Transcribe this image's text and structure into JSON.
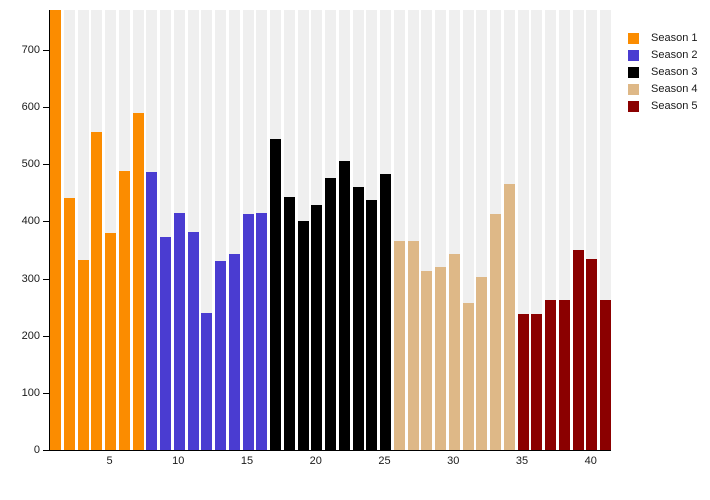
{
  "chart_data": {
    "type": "bar",
    "title": "",
    "xlabel": "",
    "ylabel": "",
    "ylim": [
      0,
      770
    ],
    "yticks": [
      0,
      100,
      200,
      300,
      400,
      500,
      600,
      700
    ],
    "xticks": [
      5,
      10,
      15,
      20,
      25,
      30,
      35,
      40
    ],
    "x_range": [
      1,
      41
    ],
    "grid": false,
    "background_stripe_color": "#efefef",
    "legend_position": "top-right",
    "series": [
      {
        "name": "Season 1",
        "color": "#FB8C00",
        "start_episode": 1,
        "values": [
          770,
          441,
          333,
          557,
          379,
          489,
          590
        ]
      },
      {
        "name": "Season 2",
        "color": "#4A3CD1",
        "start_episode": 8,
        "values": [
          486,
          373,
          415,
          381,
          240,
          331,
          343,
          413,
          414
        ]
      },
      {
        "name": "Season 3",
        "color": "#000000",
        "start_episode": 17,
        "values": [
          544,
          443,
          400,
          429,
          476,
          506,
          461,
          437,
          483
        ]
      },
      {
        "name": "Season 4",
        "color": "#DEB887",
        "start_episode": 26,
        "values": [
          366,
          366,
          314,
          320,
          343,
          258,
          302,
          413,
          466
        ]
      },
      {
        "name": "Season 5",
        "color": "#8B0000",
        "start_episode": 35,
        "values": [
          238,
          238,
          263,
          263,
          350,
          334,
          263
        ]
      }
    ]
  }
}
